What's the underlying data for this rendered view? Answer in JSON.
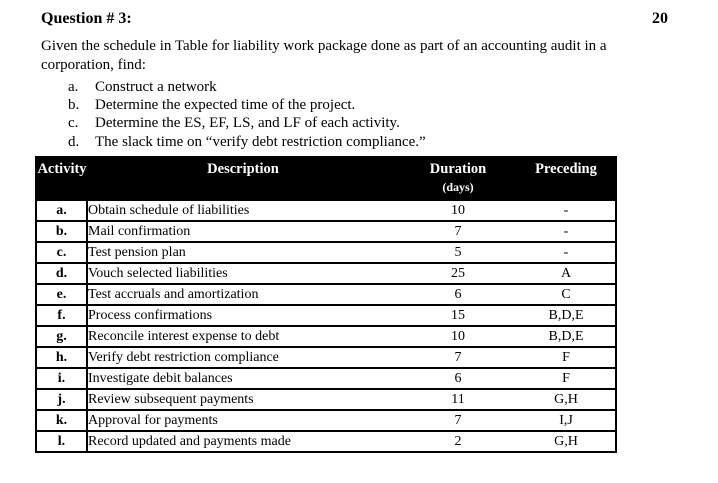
{
  "header": {
    "title": "Question # 3:",
    "points": "20"
  },
  "intro": {
    "paragraph": "Given the schedule in Table for liability work package done as part of an accounting audit in a corporation, find:",
    "items": [
      {
        "marker": "a.",
        "text": "Construct a network"
      },
      {
        "marker": "b.",
        "text": "Determine the expected time of the project."
      },
      {
        "marker": "c.",
        "text": "Determine the ES, EF, LS, and LF of each activity."
      },
      {
        "marker": "d.",
        "text": "The slack time on “verify debt restriction compliance.”"
      }
    ]
  },
  "table": {
    "columns": [
      "Activity",
      "Description",
      "Duration",
      "Preceding"
    ],
    "duration_unit": "(days)",
    "rows": [
      {
        "activity": "a.",
        "description": "Obtain schedule of liabilities",
        "duration": "10",
        "preceding": "-"
      },
      {
        "activity": "b.",
        "description": "Mail confirmation",
        "duration": "7",
        "preceding": "-"
      },
      {
        "activity": "c.",
        "description": "Test pension plan",
        "duration": "5",
        "preceding": "-"
      },
      {
        "activity": "d.",
        "description": "Vouch selected liabilities",
        "duration": "25",
        "preceding": "A"
      },
      {
        "activity": "e.",
        "description": "Test accruals and amortization",
        "duration": "6",
        "preceding": "C"
      },
      {
        "activity": "f.",
        "description": "Process confirmations",
        "duration": "15",
        "preceding": "B,D,E"
      },
      {
        "activity": "g.",
        "description": "Reconcile interest expense to debt",
        "duration": "10",
        "preceding": "B,D,E"
      },
      {
        "activity": "h.",
        "description": "Verify debt restriction compliance",
        "duration": "7",
        "preceding": "F"
      },
      {
        "activity": "i.",
        "description": "Investigate debit balances",
        "duration": "6",
        "preceding": "F"
      },
      {
        "activity": "j.",
        "description": "Review subsequent payments",
        "duration": "11",
        "preceding": "G,H"
      },
      {
        "activity": "k.",
        "description": "Approval for payments",
        "duration": "7",
        "preceding": "I,J"
      },
      {
        "activity": "l.",
        "description": "Record updated and payments made",
        "duration": "2",
        "preceding": "G,H"
      }
    ]
  },
  "colors": {
    "page_bg": "#ffffff",
    "text": "#000000",
    "table_header_bg": "#000000",
    "table_header_text": "#ffffff",
    "border": "#000000"
  }
}
